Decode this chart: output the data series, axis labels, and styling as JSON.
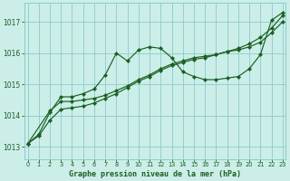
{
  "title": "Graphe pression niveau de la mer (hPa)",
  "bg_color": "#cceee8",
  "grid_color": "#88cccc",
  "line_color": "#1a6020",
  "ylim": [
    1012.6,
    1017.6
  ],
  "xlim": [
    -0.3,
    23.3
  ],
  "yticks": [
    1013,
    1014,
    1015,
    1016,
    1017
  ],
  "xticks": [
    0,
    1,
    2,
    3,
    4,
    5,
    6,
    7,
    8,
    9,
    10,
    11,
    12,
    13,
    14,
    15,
    16,
    17,
    18,
    19,
    20,
    21,
    22,
    23
  ],
  "line1_x": [
    0,
    1,
    2,
    3,
    4,
    5,
    6,
    7,
    8,
    9,
    10,
    11,
    12,
    13,
    14,
    15,
    16,
    17,
    18,
    19,
    20,
    21,
    22,
    23
  ],
  "line1_y": [
    1013.1,
    1013.4,
    1014.1,
    1014.6,
    1014.6,
    1014.7,
    1014.85,
    1015.3,
    1016.0,
    1015.75,
    1016.1,
    1016.2,
    1016.15,
    1015.85,
    1015.4,
    1015.25,
    1015.15,
    1015.15,
    1015.2,
    1015.25,
    1015.5,
    1015.95,
    1017.05,
    1017.3
  ],
  "line2_x": [
    0,
    2,
    3,
    4,
    5,
    6,
    7,
    8,
    9,
    10,
    11,
    12,
    13,
    14,
    15,
    16,
    17,
    18,
    19,
    20,
    21,
    22,
    23
  ],
  "line2_y": [
    1013.1,
    1014.15,
    1014.45,
    1014.45,
    1014.5,
    1014.55,
    1014.65,
    1014.8,
    1014.95,
    1015.15,
    1015.3,
    1015.5,
    1015.65,
    1015.75,
    1015.85,
    1015.9,
    1015.95,
    1016.05,
    1016.1,
    1016.2,
    1016.35,
    1016.65,
    1017.0
  ],
  "line3_x": [
    0,
    1,
    2,
    3,
    4,
    5,
    6,
    7,
    8,
    9,
    10,
    11,
    12,
    13,
    14,
    15,
    16,
    17,
    18,
    19,
    20,
    21,
    22,
    23
  ],
  "line3_y": [
    1013.1,
    1013.35,
    1013.85,
    1014.2,
    1014.25,
    1014.3,
    1014.4,
    1014.55,
    1014.7,
    1014.9,
    1015.1,
    1015.25,
    1015.45,
    1015.6,
    1015.7,
    1015.8,
    1015.85,
    1015.95,
    1016.05,
    1016.15,
    1016.3,
    1016.5,
    1016.8,
    1017.2
  ]
}
